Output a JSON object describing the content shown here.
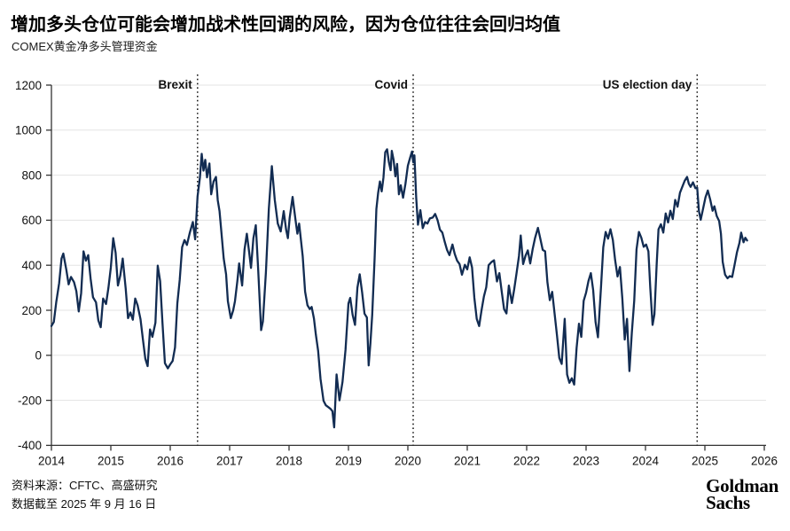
{
  "header": {
    "title": "增加多头仓位可能会增加战术性回调的风险，因为仓位往往会回归均值",
    "subtitle": "COMEX黄金净多头管理资金"
  },
  "footer": {
    "source": "资料来源：CFTC、高盛研究",
    "as_of": "数据截至 2025 年 9 月 16 日",
    "logo_line1": "Goldman",
    "logo_line2": "Sachs"
  },
  "chart_data": {
    "type": "line",
    "title": "COMEX黄金净多头管理资金",
    "xlabel": "",
    "ylabel": "",
    "x_range": [
      2014,
      2026
    ],
    "ylim": [
      -400,
      1200
    ],
    "x_ticks": [
      2014,
      2015,
      2016,
      2017,
      2018,
      2019,
      2020,
      2021,
      2022,
      2023,
      2024,
      2025,
      2026
    ],
    "y_ticks": [
      -400,
      -200,
      0,
      200,
      400,
      600,
      800,
      1000,
      1200
    ],
    "grid": "horizontal",
    "legend": "none",
    "line_color": "#122c52",
    "grid_color": "#e3e3e3",
    "axis_color": "#333333",
    "annotation_color": "#111111",
    "annotations": [
      {
        "label": "Brexit",
        "x": 2016.46
      },
      {
        "label": "Covid",
        "x": 2020.09
      },
      {
        "label": "US election day",
        "x": 2024.87
      }
    ],
    "series": [
      {
        "name": "COMEX黄金净多头管理资金",
        "points": [
          [
            2014.0,
            130
          ],
          [
            2014.04,
            148
          ],
          [
            2014.08,
            235
          ],
          [
            2014.13,
            320
          ],
          [
            2014.17,
            430
          ],
          [
            2014.2,
            452
          ],
          [
            2014.25,
            380
          ],
          [
            2014.29,
            315
          ],
          [
            2014.33,
            348
          ],
          [
            2014.38,
            325
          ],
          [
            2014.42,
            285
          ],
          [
            2014.46,
            195
          ],
          [
            2014.5,
            275
          ],
          [
            2014.54,
            462
          ],
          [
            2014.58,
            420
          ],
          [
            2014.62,
            445
          ],
          [
            2014.66,
            340
          ],
          [
            2014.7,
            258
          ],
          [
            2014.75,
            235
          ],
          [
            2014.79,
            155
          ],
          [
            2014.83,
            125
          ],
          [
            2014.87,
            252
          ],
          [
            2014.92,
            228
          ],
          [
            2014.96,
            300
          ],
          [
            2015.0,
            390
          ],
          [
            2015.04,
            520
          ],
          [
            2015.08,
            455
          ],
          [
            2015.12,
            310
          ],
          [
            2015.16,
            355
          ],
          [
            2015.2,
            430
          ],
          [
            2015.25,
            295
          ],
          [
            2015.29,
            165
          ],
          [
            2015.33,
            190
          ],
          [
            2015.37,
            158
          ],
          [
            2015.41,
            252
          ],
          [
            2015.45,
            222
          ],
          [
            2015.5,
            160
          ],
          [
            2015.54,
            70
          ],
          [
            2015.58,
            -15
          ],
          [
            2015.62,
            -48
          ],
          [
            2015.66,
            115
          ],
          [
            2015.7,
            82
          ],
          [
            2015.75,
            145
          ],
          [
            2015.79,
            398
          ],
          [
            2015.83,
            330
          ],
          [
            2015.87,
            140
          ],
          [
            2015.91,
            -35
          ],
          [
            2015.96,
            -58
          ],
          [
            2016.0,
            -40
          ],
          [
            2016.04,
            -25
          ],
          [
            2016.08,
            35
          ],
          [
            2016.12,
            230
          ],
          [
            2016.16,
            335
          ],
          [
            2016.2,
            480
          ],
          [
            2016.24,
            512
          ],
          [
            2016.28,
            490
          ],
          [
            2016.33,
            545
          ],
          [
            2016.38,
            592
          ],
          [
            2016.42,
            515
          ],
          [
            2016.46,
            705
          ],
          [
            2016.5,
            790
          ],
          [
            2016.53,
            895
          ],
          [
            2016.56,
            820
          ],
          [
            2016.59,
            868
          ],
          [
            2016.62,
            790
          ],
          [
            2016.66,
            852
          ],
          [
            2016.69,
            715
          ],
          [
            2016.73,
            772
          ],
          [
            2016.77,
            792
          ],
          [
            2016.8,
            688
          ],
          [
            2016.83,
            640
          ],
          [
            2016.87,
            520
          ],
          [
            2016.9,
            430
          ],
          [
            2016.94,
            360
          ],
          [
            2016.97,
            240
          ],
          [
            2017.02,
            165
          ],
          [
            2017.06,
            200
          ],
          [
            2017.09,
            240
          ],
          [
            2017.13,
            330
          ],
          [
            2017.16,
            408
          ],
          [
            2017.21,
            310
          ],
          [
            2017.25,
            470
          ],
          [
            2017.29,
            540
          ],
          [
            2017.33,
            455
          ],
          [
            2017.36,
            388
          ],
          [
            2017.4,
            520
          ],
          [
            2017.44,
            578
          ],
          [
            2017.48,
            380
          ],
          [
            2017.53,
            112
          ],
          [
            2017.56,
            150
          ],
          [
            2017.61,
            368
          ],
          [
            2017.66,
            650
          ],
          [
            2017.71,
            840
          ],
          [
            2017.76,
            690
          ],
          [
            2017.81,
            585
          ],
          [
            2017.86,
            550
          ],
          [
            2017.91,
            640
          ],
          [
            2017.95,
            558
          ],
          [
            2017.98,
            520
          ],
          [
            2018.01,
            610
          ],
          [
            2018.06,
            703
          ],
          [
            2018.11,
            598
          ],
          [
            2018.14,
            540
          ],
          [
            2018.17,
            585
          ],
          [
            2018.23,
            440
          ],
          [
            2018.27,
            283
          ],
          [
            2018.31,
            222
          ],
          [
            2018.35,
            205
          ],
          [
            2018.38,
            215
          ],
          [
            2018.42,
            163
          ],
          [
            2018.45,
            93
          ],
          [
            2018.49,
            20
          ],
          [
            2018.53,
            -105
          ],
          [
            2018.58,
            -202
          ],
          [
            2018.62,
            -222
          ],
          [
            2018.66,
            -230
          ],
          [
            2018.7,
            -238
          ],
          [
            2018.73,
            -248
          ],
          [
            2018.76,
            -320
          ],
          [
            2018.8,
            -85
          ],
          [
            2018.85,
            -200
          ],
          [
            2018.9,
            -118
          ],
          [
            2018.95,
            25
          ],
          [
            2019.0,
            230
          ],
          [
            2019.03,
            255
          ],
          [
            2019.07,
            180
          ],
          [
            2019.11,
            135
          ],
          [
            2019.15,
            300
          ],
          [
            2019.19,
            360
          ],
          [
            2019.23,
            280
          ],
          [
            2019.27,
            185
          ],
          [
            2019.31,
            168
          ],
          [
            2019.34,
            -45
          ],
          [
            2019.37,
            55
          ],
          [
            2019.4,
            180
          ],
          [
            2019.44,
            430
          ],
          [
            2019.47,
            650
          ],
          [
            2019.5,
            722
          ],
          [
            2019.53,
            772
          ],
          [
            2019.56,
            728
          ],
          [
            2019.59,
            790
          ],
          [
            2019.62,
            902
          ],
          [
            2019.65,
            915
          ],
          [
            2019.68,
            858
          ],
          [
            2019.71,
            822
          ],
          [
            2019.73,
            908
          ],
          [
            2019.76,
            868
          ],
          [
            2019.79,
            795
          ],
          [
            2019.82,
            850
          ],
          [
            2019.85,
            715
          ],
          [
            2019.88,
            755
          ],
          [
            2019.92,
            700
          ],
          [
            2019.96,
            762
          ],
          [
            2020.0,
            842
          ],
          [
            2020.04,
            880
          ],
          [
            2020.07,
            905
          ],
          [
            2020.09,
            858
          ],
          [
            2020.11,
            888
          ],
          [
            2020.14,
            700
          ],
          [
            2020.17,
            580
          ],
          [
            2020.21,
            645
          ],
          [
            2020.25,
            565
          ],
          [
            2020.29,
            592
          ],
          [
            2020.33,
            585
          ],
          [
            2020.37,
            608
          ],
          [
            2020.42,
            612
          ],
          [
            2020.46,
            628
          ],
          [
            2020.5,
            600
          ],
          [
            2020.54,
            558
          ],
          [
            2020.58,
            545
          ],
          [
            2020.62,
            505
          ],
          [
            2020.66,
            468
          ],
          [
            2020.7,
            445
          ],
          [
            2020.75,
            492
          ],
          [
            2020.79,
            450
          ],
          [
            2020.83,
            420
          ],
          [
            2020.87,
            405
          ],
          [
            2020.91,
            358
          ],
          [
            2020.96,
            402
          ],
          [
            2021.0,
            382
          ],
          [
            2021.04,
            435
          ],
          [
            2021.08,
            390
          ],
          [
            2021.12,
            255
          ],
          [
            2021.16,
            162
          ],
          [
            2021.2,
            130
          ],
          [
            2021.24,
            200
          ],
          [
            2021.28,
            262
          ],
          [
            2021.32,
            302
          ],
          [
            2021.36,
            400
          ],
          [
            2021.41,
            415
          ],
          [
            2021.45,
            422
          ],
          [
            2021.5,
            328
          ],
          [
            2021.54,
            365
          ],
          [
            2021.58,
            282
          ],
          [
            2021.62,
            205
          ],
          [
            2021.66,
            186
          ],
          [
            2021.7,
            310
          ],
          [
            2021.75,
            232
          ],
          [
            2021.79,
            292
          ],
          [
            2021.83,
            365
          ],
          [
            2021.87,
            440
          ],
          [
            2021.9,
            532
          ],
          [
            2021.94,
            405
          ],
          [
            2021.98,
            442
          ],
          [
            2022.02,
            466
          ],
          [
            2022.06,
            408
          ],
          [
            2022.1,
            470
          ],
          [
            2022.14,
            520
          ],
          [
            2022.19,
            566
          ],
          [
            2022.23,
            518
          ],
          [
            2022.27,
            468
          ],
          [
            2022.31,
            462
          ],
          [
            2022.35,
            325
          ],
          [
            2022.39,
            245
          ],
          [
            2022.43,
            282
          ],
          [
            2022.47,
            185
          ],
          [
            2022.51,
            88
          ],
          [
            2022.55,
            -12
          ],
          [
            2022.59,
            -38
          ],
          [
            2022.64,
            162
          ],
          [
            2022.68,
            -85
          ],
          [
            2022.72,
            -122
          ],
          [
            2022.76,
            -102
          ],
          [
            2022.8,
            -130
          ],
          [
            2022.84,
            32
          ],
          [
            2022.88,
            140
          ],
          [
            2022.92,
            82
          ],
          [
            2022.96,
            242
          ],
          [
            2023.0,
            278
          ],
          [
            2023.04,
            330
          ],
          [
            2023.08,
            365
          ],
          [
            2023.12,
            290
          ],
          [
            2023.16,
            148
          ],
          [
            2023.2,
            80
          ],
          [
            2023.25,
            300
          ],
          [
            2023.29,
            480
          ],
          [
            2023.33,
            548
          ],
          [
            2023.37,
            518
          ],
          [
            2023.41,
            560
          ],
          [
            2023.45,
            512
          ],
          [
            2023.49,
            422
          ],
          [
            2023.53,
            350
          ],
          [
            2023.57,
            392
          ],
          [
            2023.61,
            252
          ],
          [
            2023.65,
            70
          ],
          [
            2023.69,
            162
          ],
          [
            2023.73,
            -70
          ],
          [
            2023.77,
            100
          ],
          [
            2023.81,
            242
          ],
          [
            2023.85,
            470
          ],
          [
            2023.89,
            548
          ],
          [
            2023.93,
            522
          ],
          [
            2023.97,
            482
          ],
          [
            2024.01,
            492
          ],
          [
            2024.05,
            462
          ],
          [
            2024.08,
            300
          ],
          [
            2024.12,
            135
          ],
          [
            2024.15,
            182
          ],
          [
            2024.19,
            410
          ],
          [
            2024.22,
            560
          ],
          [
            2024.26,
            582
          ],
          [
            2024.3,
            545
          ],
          [
            2024.34,
            630
          ],
          [
            2024.38,
            590
          ],
          [
            2024.42,
            642
          ],
          [
            2024.46,
            605
          ],
          [
            2024.5,
            690
          ],
          [
            2024.54,
            660
          ],
          [
            2024.58,
            722
          ],
          [
            2024.62,
            748
          ],
          [
            2024.66,
            775
          ],
          [
            2024.7,
            792
          ],
          [
            2024.73,
            762
          ],
          [
            2024.76,
            748
          ],
          [
            2024.8,
            768
          ],
          [
            2024.84,
            742
          ],
          [
            2024.87,
            745
          ],
          [
            2024.9,
            640
          ],
          [
            2024.93,
            602
          ],
          [
            2024.97,
            652
          ],
          [
            2025.01,
            702
          ],
          [
            2025.05,
            732
          ],
          [
            2025.09,
            692
          ],
          [
            2025.13,
            642
          ],
          [
            2025.16,
            662
          ],
          [
            2025.2,
            618
          ],
          [
            2025.24,
            596
          ],
          [
            2025.27,
            540
          ],
          [
            2025.3,
            415
          ],
          [
            2025.34,
            358
          ],
          [
            2025.38,
            342
          ],
          [
            2025.42,
            352
          ],
          [
            2025.46,
            348
          ],
          [
            2025.5,
            402
          ],
          [
            2025.54,
            458
          ],
          [
            2025.58,
            498
          ],
          [
            2025.61,
            545
          ],
          [
            2025.65,
            502
          ],
          [
            2025.68,
            522
          ],
          [
            2025.71,
            510
          ]
        ]
      }
    ]
  }
}
